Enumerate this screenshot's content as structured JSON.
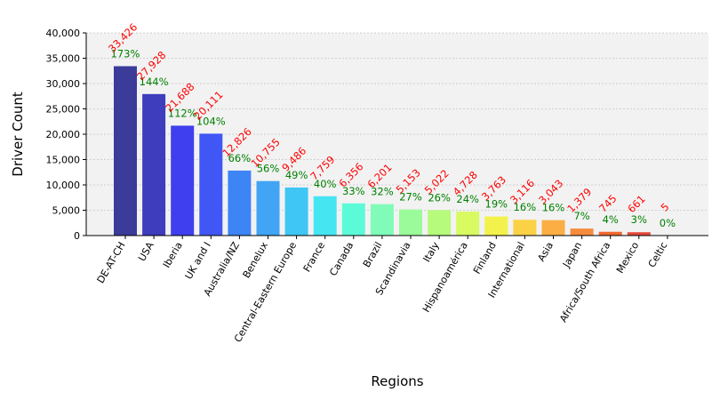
{
  "chart_data": {
    "type": "bar",
    "xlabel": "Regions",
    "ylabel": "Driver Count",
    "ylim": [
      0,
      40000
    ],
    "yticks": [
      "0",
      "5,000",
      "10,000",
      "15,000",
      "20,000",
      "25,000",
      "30,000",
      "35,000",
      "40,000"
    ],
    "ytick_values": [
      0,
      5000,
      10000,
      15000,
      20000,
      25000,
      30000,
      35000,
      40000
    ],
    "grid": true,
    "categories": [
      "DE-AT-CH",
      "USA",
      "Iberia",
      "UK and I",
      "Australia/NZ",
      "Benelux",
      "Central-Eastern Europe",
      "France",
      "Canada",
      "Brazil",
      "Scandinavia",
      "Italy",
      "Hispanoamérica",
      "Finland",
      "International",
      "Asia",
      "Japan",
      "Africa/South Africa",
      "Mexico",
      "Celtic"
    ],
    "values": [
      33426,
      27928,
      21688,
      20111,
      12826,
      10755,
      9486,
      7759,
      6356,
      6201,
      5153,
      5022,
      4728,
      3763,
      3116,
      3043,
      1379,
      745,
      661,
      5
    ],
    "value_labels": [
      "33,426",
      "27,928",
      "21,688",
      "20,111",
      "12,826",
      "10,755",
      "9,486",
      "7,759",
      "6,356",
      "6,201",
      "5,153",
      "5,022",
      "4,728",
      "3,763",
      "3,116",
      "3,043",
      "1,379",
      "745",
      "661",
      "5"
    ],
    "percent_labels": [
      "173%",
      "144%",
      "112%",
      "104%",
      "66%",
      "56%",
      "49%",
      "40%",
      "33%",
      "32%",
      "27%",
      "26%",
      "24%",
      "19%",
      "16%",
      "16%",
      "7%",
      "4%",
      "3%",
      "0%"
    ],
    "colors": [
      "#3b3b9a",
      "#3d3dbd",
      "#3f3ff0",
      "#4157f5",
      "#3d84f4",
      "#42a4f4",
      "#3fc6f5",
      "#45e5f2",
      "#5cfbd8",
      "#80fbb8",
      "#9bfb9a",
      "#b7fb7d",
      "#d7fb61",
      "#f3f24c",
      "#fbd246",
      "#fbae44",
      "#f68b3d",
      "#f0682f",
      "#e44a3a",
      "#cc2f3a"
    ]
  }
}
